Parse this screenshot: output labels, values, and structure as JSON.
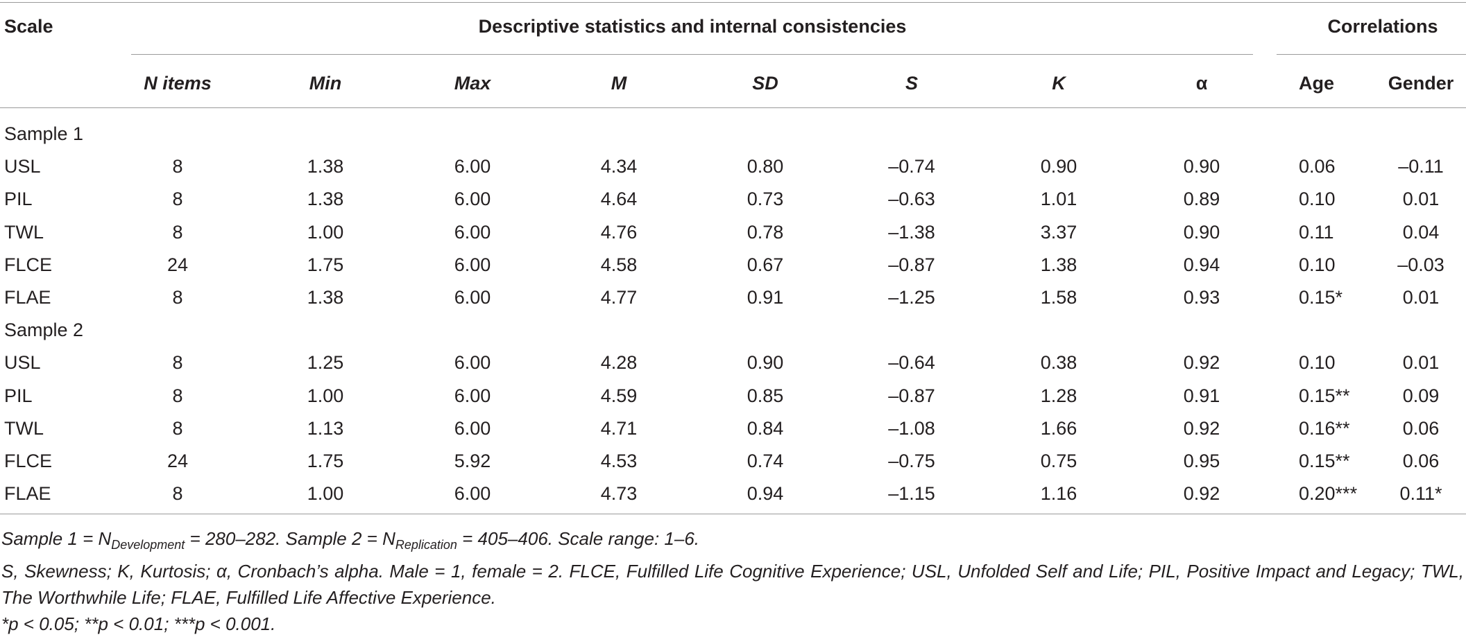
{
  "header": {
    "scale": "Scale",
    "group1": "Descriptive statistics and internal consistencies",
    "group2": "Correlations",
    "columns": [
      "N items",
      "Min",
      "Max",
      "M",
      "SD",
      "S",
      "K",
      "α",
      "Age",
      "Gender"
    ]
  },
  "sections": [
    {
      "label": "Sample 1",
      "rows": [
        [
          "USL",
          "8",
          "1.38",
          "6.00",
          "4.34",
          "0.80",
          "–0.74",
          "0.90",
          "0.90",
          "0.06",
          "–0.11"
        ],
        [
          "PIL",
          "8",
          "1.38",
          "6.00",
          "4.64",
          "0.73",
          "–0.63",
          "1.01",
          "0.89",
          "0.10",
          "0.01"
        ],
        [
          "TWL",
          "8",
          "1.00",
          "6.00",
          "4.76",
          "0.78",
          "–1.38",
          "3.37",
          "0.90",
          "0.11",
          "0.04"
        ],
        [
          "FLCE",
          "24",
          "1.75",
          "6.00",
          "4.58",
          "0.67",
          "–0.87",
          "1.38",
          "0.94",
          "0.10",
          "–0.03"
        ],
        [
          "FLAE",
          "8",
          "1.38",
          "6.00",
          "4.77",
          "0.91",
          "–1.25",
          "1.58",
          "0.93",
          "0.15*",
          "0.01"
        ]
      ]
    },
    {
      "label": "Sample 2",
      "rows": [
        [
          "USL",
          "8",
          "1.25",
          "6.00",
          "4.28",
          "0.90",
          "–0.64",
          "0.38",
          "0.92",
          "0.10",
          "0.01"
        ],
        [
          "PIL",
          "8",
          "1.00",
          "6.00",
          "4.59",
          "0.85",
          "–0.87",
          "1.28",
          "0.91",
          "0.15**",
          "0.09"
        ],
        [
          "TWL",
          "8",
          "1.13",
          "6.00",
          "4.71",
          "0.84",
          "–1.08",
          "1.66",
          "0.92",
          "0.16**",
          "0.06"
        ],
        [
          "FLCE",
          "24",
          "1.75",
          "5.92",
          "4.53",
          "0.74",
          "–0.75",
          "0.75",
          "0.95",
          "0.15**",
          "0.06"
        ],
        [
          "FLAE",
          "8",
          "1.00",
          "6.00",
          "4.73",
          "0.94",
          "–1.15",
          "1.16",
          "0.92",
          "0.20***",
          "0.11*"
        ]
      ]
    }
  ],
  "notes": {
    "line1": [
      "Sample 1 = N",
      "Development",
      " = 280–282. Sample 2 = N",
      "Replication",
      " = 405–406. Scale range: 1–6."
    ],
    "line2": "S, Skewness; K, Kurtosis; α, Cronbach’s alpha. Male = 1, female = 2. FLCE, Fulfilled Life Cognitive Experience; USL, Unfolded Self and Life; PIL, Positive Impact and Legacy; TWL, The Worthwhile Life; FLAE, Fulfilled Life Affective Experience.",
    "line3": "*p < 0.05; **p < 0.01; ***p < 0.001."
  }
}
